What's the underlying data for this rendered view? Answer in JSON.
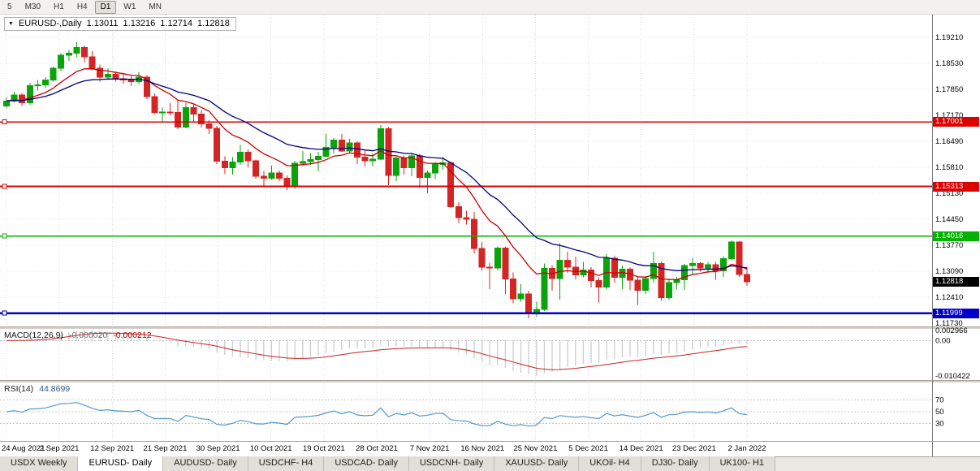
{
  "toolbar": {
    "timeframes": [
      {
        "label": "5",
        "active": false
      },
      {
        "label": "M30",
        "active": false
      },
      {
        "label": "H1",
        "active": false
      },
      {
        "label": "H4",
        "active": false
      },
      {
        "label": "D1",
        "active": true
      },
      {
        "label": "W1",
        "active": false
      },
      {
        "label": "MN",
        "active": false
      }
    ]
  },
  "chart": {
    "title": {
      "collapse_icon": "▼",
      "symbol": "EURUSD-,Daily",
      "open": "1.13011",
      "high": "1.13216",
      "low": "1.12714",
      "close": "1.12818"
    }
  },
  "chart_data": {
    "type": "candlestick",
    "symbol": "EURUSD",
    "timeframe": "Daily",
    "candle_format": "[open,high,low,close]",
    "bull_color": "#0ba30b",
    "bear_color": "#d42525",
    "y_axis_ticks": [
      "1.19210",
      "1.18530",
      "1.17850",
      "1.17170",
      "1.16490",
      "1.15810",
      "1.15130",
      "1.14450",
      "1.13770",
      "1.13090",
      "1.12410",
      "1.11730"
    ],
    "date_labels": [
      "24 Aug 2021",
      "2 Sep 2021",
      "12 Sep 2021",
      "21 Sep 2021",
      "30 Sep 2021",
      "10 Oct 2021",
      "19 Oct 2021",
      "28 Oct 2021",
      "7 Nov 2021",
      "16 Nov 2021",
      "25 Nov 2021",
      "5 Dec 2021",
      "14 Dec 2021",
      "23 Dec 2021",
      "2 Jan 2022"
    ],
    "hlines": [
      {
        "price": 1.17001,
        "label": "1.17001",
        "color": "#dd0000",
        "width": 1.7
      },
      {
        "price": 1.15313,
        "label": "1.15313",
        "color": "#dd0000",
        "width": 1.7
      },
      {
        "price": 1.14016,
        "label": "1.14016",
        "color": "#00b300",
        "width": 1.7
      },
      {
        "price": 1.11999,
        "label": "1.11999",
        "color": "#0000cc",
        "width": 2.5
      }
    ],
    "current_price": {
      "price": 1.12818,
      "label": "1.12818",
      "color": "#000000"
    },
    "moving_averages": [
      {
        "name": "ma-fast",
        "period": 10,
        "color": "#cc0000"
      },
      {
        "name": "ma-slow",
        "period": 21,
        "color": "#000080"
      }
    ],
    "indicators": {
      "macd": {
        "label": "MACD(12,26,9)",
        "value1": "-0.000020",
        "value2": "-0.000212",
        "fast": 12,
        "slow": 26,
        "signal_period": 9,
        "axis_labels": [
          "0.002966",
          "0.00",
          "-0.010422"
        ],
        "axis_max": 0.002966,
        "axis_min": -0.010422,
        "histogram_color": "#9a9a9a",
        "signal_color": "#cc2222"
      },
      "rsi": {
        "label": "RSI(14)",
        "value": "44.8699",
        "period": 14,
        "levels": [
          "70",
          "50",
          "30"
        ],
        "level_values": [
          70,
          50,
          30
        ],
        "color": "#5599cc"
      }
    },
    "candles": [
      [
        1.1742,
        1.1765,
        1.1735,
        1.1755
      ],
      [
        1.1755,
        1.1779,
        1.175,
        1.177
      ],
      [
        1.177,
        1.1776,
        1.1742,
        1.175
      ],
      [
        1.175,
        1.1802,
        1.1745,
        1.1795
      ],
      [
        1.1795,
        1.181,
        1.1782,
        1.1797
      ],
      [
        1.1797,
        1.1817,
        1.179,
        1.181
      ],
      [
        1.181,
        1.1845,
        1.1805,
        1.184
      ],
      [
        1.184,
        1.188,
        1.1833,
        1.1875
      ],
      [
        1.1875,
        1.1888,
        1.186,
        1.188
      ],
      [
        1.188,
        1.1909,
        1.187,
        1.1895
      ],
      [
        1.1895,
        1.19,
        1.1855,
        1.187
      ],
      [
        1.187,
        1.1885,
        1.1835,
        1.184
      ],
      [
        1.184,
        1.185,
        1.1805,
        1.1817
      ],
      [
        1.1817,
        1.1841,
        1.181,
        1.1825
      ],
      [
        1.1825,
        1.1832,
        1.1805,
        1.1813
      ],
      [
        1.1813,
        1.1828,
        1.18,
        1.181
      ],
      [
        1.181,
        1.182,
        1.1795,
        1.1805
      ],
      [
        1.1805,
        1.1831,
        1.18,
        1.1817
      ],
      [
        1.1817,
        1.1822,
        1.176,
        1.1766
      ],
      [
        1.1766,
        1.1775,
        1.172,
        1.1725
      ],
      [
        1.1725,
        1.1737,
        1.17,
        1.1726
      ],
      [
        1.1726,
        1.1749,
        1.1717,
        1.1725
      ],
      [
        1.1725,
        1.1756,
        1.1681,
        1.1687
      ],
      [
        1.1687,
        1.175,
        1.1683,
        1.1738
      ],
      [
        1.1738,
        1.1748,
        1.1701,
        1.172
      ],
      [
        1.172,
        1.173,
        1.1685,
        1.1695
      ],
      [
        1.1695,
        1.1705,
        1.1668,
        1.1683
      ],
      [
        1.1683,
        1.169,
        1.159,
        1.1597
      ],
      [
        1.1597,
        1.161,
        1.1563,
        1.158
      ],
      [
        1.158,
        1.1608,
        1.1562,
        1.1595
      ],
      [
        1.1595,
        1.164,
        1.1588,
        1.1621
      ],
      [
        1.1621,
        1.1628,
        1.1581,
        1.1598
      ],
      [
        1.1598,
        1.1602,
        1.1552,
        1.1558
      ],
      [
        1.1558,
        1.1572,
        1.1529,
        1.1553
      ],
      [
        1.1553,
        1.1586,
        1.1548,
        1.1567
      ],
      [
        1.1567,
        1.1573,
        1.1545,
        1.1553
      ],
      [
        1.1553,
        1.156,
        1.1522,
        1.153
      ],
      [
        1.153,
        1.1598,
        1.1525,
        1.1592
      ],
      [
        1.1592,
        1.1624,
        1.1585,
        1.1596
      ],
      [
        1.1596,
        1.1619,
        1.1588,
        1.1601
      ],
      [
        1.1601,
        1.1622,
        1.1571,
        1.161
      ],
      [
        1.161,
        1.167,
        1.1608,
        1.1633
      ],
      [
        1.1633,
        1.1658,
        1.1617,
        1.1653
      ],
      [
        1.1653,
        1.1668,
        1.1622,
        1.1624
      ],
      [
        1.1624,
        1.1656,
        1.1618,
        1.1645
      ],
      [
        1.1645,
        1.1649,
        1.159,
        1.1608
      ],
      [
        1.1608,
        1.1626,
        1.1585,
        1.1598
      ],
      [
        1.1598,
        1.1617,
        1.1583,
        1.1603
      ],
      [
        1.1603,
        1.1692,
        1.1599,
        1.1682
      ],
      [
        1.1682,
        1.1686,
        1.1535,
        1.156
      ],
      [
        1.156,
        1.1609,
        1.1545,
        1.1606
      ],
      [
        1.1606,
        1.1612,
        1.1562,
        1.158
      ],
      [
        1.158,
        1.162,
        1.1558,
        1.1611
      ],
      [
        1.1611,
        1.1616,
        1.1527,
        1.1555
      ],
      [
        1.1555,
        1.1573,
        1.1513,
        1.1567
      ],
      [
        1.1567,
        1.1595,
        1.1551,
        1.1589
      ],
      [
        1.1589,
        1.1609,
        1.1575,
        1.1593
      ],
      [
        1.1593,
        1.1596,
        1.1475,
        1.1478
      ],
      [
        1.1478,
        1.149,
        1.1435,
        1.145
      ],
      [
        1.145,
        1.1468,
        1.1432,
        1.1445
      ],
      [
        1.1445,
        1.1464,
        1.1356,
        1.1369
      ],
      [
        1.1369,
        1.1386,
        1.131,
        1.132
      ],
      [
        1.132,
        1.1332,
        1.1263,
        1.1318
      ],
      [
        1.1318,
        1.1374,
        1.1312,
        1.137
      ],
      [
        1.137,
        1.1374,
        1.125,
        1.1289
      ],
      [
        1.1289,
        1.1306,
        1.1226,
        1.1237
      ],
      [
        1.1237,
        1.1275,
        1.123,
        1.125
      ],
      [
        1.125,
        1.1258,
        1.1186,
        1.12
      ],
      [
        1.12,
        1.123,
        1.119,
        1.121
      ],
      [
        1.121,
        1.133,
        1.1205,
        1.1317
      ],
      [
        1.1317,
        1.1325,
        1.1258,
        1.129
      ],
      [
        1.129,
        1.1383,
        1.1235,
        1.1338
      ],
      [
        1.1338,
        1.136,
        1.1305,
        1.132
      ],
      [
        1.132,
        1.1348,
        1.1288,
        1.13
      ],
      [
        1.13,
        1.1334,
        1.1293,
        1.1313
      ],
      [
        1.1313,
        1.132,
        1.1267,
        1.1285
      ],
      [
        1.1285,
        1.1293,
        1.1228,
        1.1268
      ],
      [
        1.1268,
        1.1355,
        1.1262,
        1.1343
      ],
      [
        1.1343,
        1.135,
        1.128,
        1.1294
      ],
      [
        1.1294,
        1.1324,
        1.1263,
        1.1315
      ],
      [
        1.1315,
        1.132,
        1.126,
        1.1286
      ],
      [
        1.1286,
        1.1297,
        1.1221,
        1.126
      ],
      [
        1.126,
        1.1297,
        1.125,
        1.129
      ],
      [
        1.129,
        1.136,
        1.128,
        1.133
      ],
      [
        1.133,
        1.1335,
        1.1232,
        1.124
      ],
      [
        1.124,
        1.129,
        1.1234,
        1.128
      ],
      [
        1.128,
        1.1295,
        1.1262,
        1.1287
      ],
      [
        1.1287,
        1.1328,
        1.1261,
        1.1324
      ],
      [
        1.1324,
        1.1344,
        1.1301,
        1.133
      ],
      [
        1.133,
        1.1333,
        1.1308,
        1.1318
      ],
      [
        1.1318,
        1.1333,
        1.1304,
        1.1326
      ],
      [
        1.1326,
        1.1334,
        1.1287,
        1.131
      ],
      [
        1.131,
        1.1349,
        1.1295,
        1.1342
      ],
      [
        1.1342,
        1.139,
        1.1338,
        1.1386
      ],
      [
        1.1386,
        1.1388,
        1.1295,
        1.1301
      ],
      [
        1.13011,
        1.13216,
        1.12714,
        1.12818
      ]
    ]
  },
  "tabs": {
    "items": [
      {
        "label": "USDX Weekly",
        "active": false
      },
      {
        "label": "EURUSD- Daily",
        "active": true
      },
      {
        "label": "AUDUSD- Daily",
        "active": false
      },
      {
        "label": "USDCHF- H4",
        "active": false
      },
      {
        "label": "USDCAD- Daily",
        "active": false
      },
      {
        "label": "USDCNH- Daily",
        "active": false
      },
      {
        "label": "XAUUSD- Daily",
        "active": false
      },
      {
        "label": "UKOil- H4",
        "active": false
      },
      {
        "label": "DJ30- Daily",
        "active": false
      },
      {
        "label": "UK100- H1",
        "active": false
      }
    ]
  }
}
